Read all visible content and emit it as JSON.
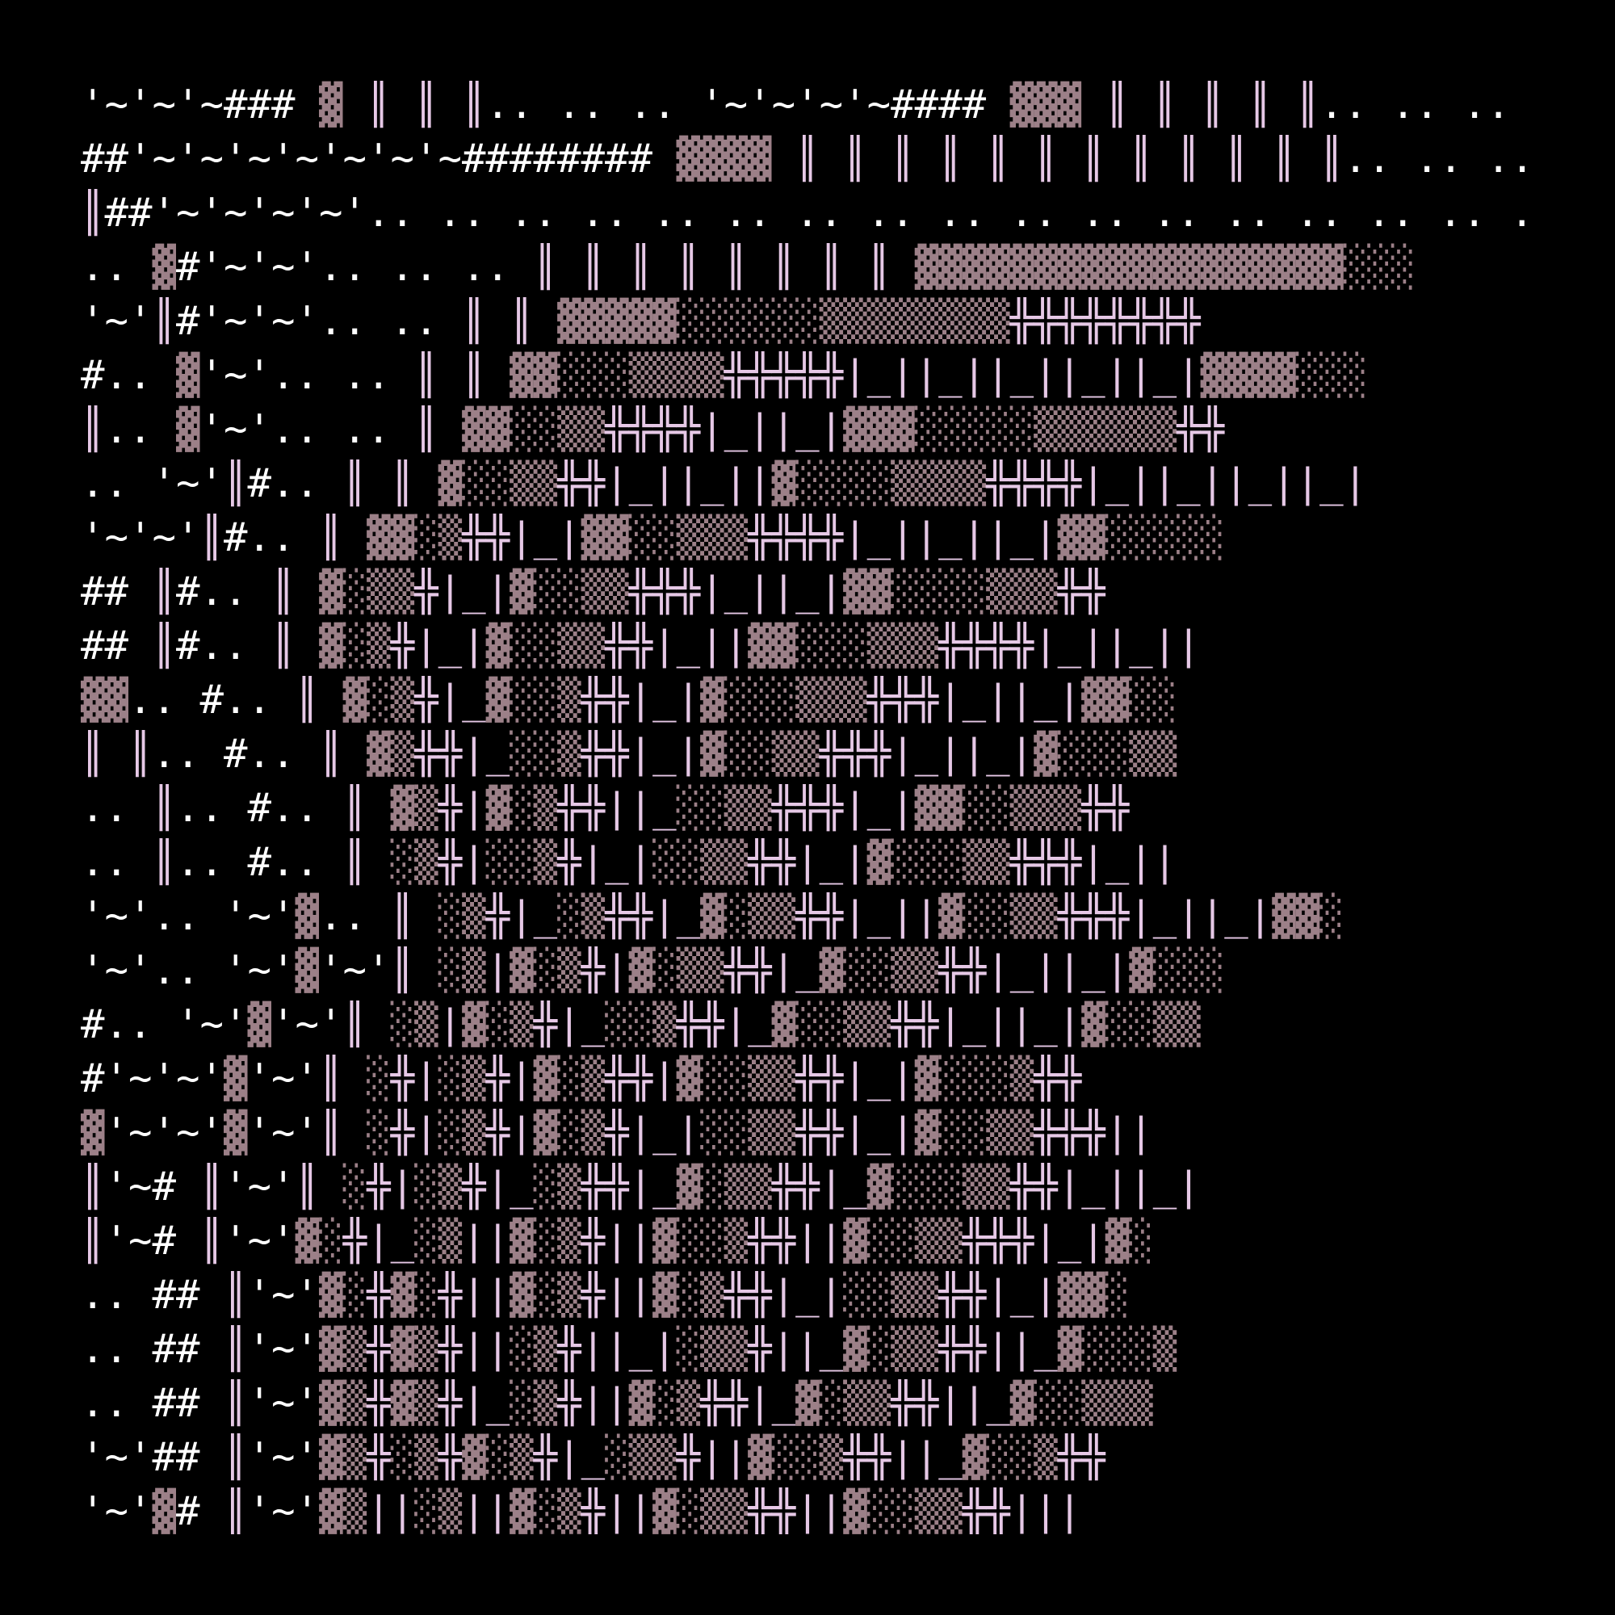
{
  "art": {
    "title": "",
    "rows": [
      "'~'~'~### ▓ ║ ║ ║.. .. .. '~'~'~'~#### ▓▓▓ ║ ║ ║ ║ ║.. .. .. .. .. .. .. '",
      "##'~'~'~'~'~'~'~######## ▓▓▓▓ ║ ║ ║ ║ ║ ║ ║ ║ ║ ║ ║ ║.. .. .. .. ..",
      "║##'~'~'~'~'.. .. .. .. .. .. .. .. .. .. .. .. .. .. .. .. .. .. .. .. .. .. ..",
      ".. ▓#'~'~'.. .. .. ║ ║ ║ ║ ║ ║ ║ ║ ▓▓▓▓▓▓▓▓▓▓▓▓▓▓▓▓▓▓░░░",
      "'~'║#'~'~'.. .. ║ ║ ▓▓▓▓▓░░░░░░▒▒▒▒▒▒▒▒╬╬╬╬╬╬╬╬",
      "#.. ▓'~'.. .. ║ ║ ▓▓░░░▒▒▒▒╬╬╬╬╬|_||_||_||_||_|▓▓▓▓░░░",
      "║.. ▓'~'.. .. ║ ▓▓░░▒▒╬╬╬╬|_||_|▓▓▓░░░░░▒▒▒▒▒▒╬╬",
      ".. '~'║#.. ║ ║ ▓░░▒▒╬╬|_||_||▓░░░░▒▒▒▒╬╬╬╬|_||_||_||_|",
      "'~'~'║#.. ║ ▓▓░▒╬╬|_|▓▓░░▒▒▒╬╬╬╬|_||_||_|▓▓░░░░░",
      "## ║#.. ║ ▓░▒▒╬|_|▓░░▒▒╬╬╬|_||_|▓▓░░░░▒▒▒╬╬",
      "## ║#.. ║ ▓░▒╬|_|▓░░▒▒╬╬|_||▓▓░░░▒▒▒╬╬╬╬|_||_||",
      "▓▓.. #.. ║ ▓░▒╬|_▓░░▒╬╬|_|▓░░░▒▒▒╬╬╬|_||_|▓▓░░",
      "║ ║.. #.. ║ ▓▒╬╬|_░░▒╬╬|_|▓░░▒▒╬╬╬|_||_|▓░░░▒▒",
      ".. ║.. #.. ║ ▓▒╬|▓░▒╬╬||_░░▒▒╬╬╬|_|▓▓░░▒▒▒╬╬",
      ".. ║.. #.. ║ ░▒╬|░░▒╬|_|░░▒▒╬╬|_|▓░░░▒▒╬╬╬|_||",
      "'~'.. '~'▓.. ║ ░▒╬|_░▒╬╬|_▓░▒▒╬╬|_||▓░░▒▒╬╬╬|_||_|▓▓░",
      "'~'.. '~'▓'~'║ ░▒|▓░▒╬|▓░▒▒╬╬|_▓░░▒▒╬╬|_||_|▓░░░",
      "#.. '~'▓'~'║ ░▒|▓░▒╬|_░░▒╬╬|_▓░░▒▒╬╬|_||_|▓░░▒▒",
      "#'~'~'▓'~'║ ░╬|░▒╬|▓░▒╬╬|▓░░▒▒╬╬|_|▓░░░▒╬╬",
      "▓'~'~'▓'~'║ ░╬|░▒╬|▓░▒╬|_|░░▒▒╬╬|_|▓░░▒▒╬╬╬||",
      "║'~# ║'~'║ ░╬|░▒╬|_░▒╬╬|_▓░▒▒╬╬|_▓░░░▒▒╬╬|_||_|",
      "║'~# ║'~'▓░╬|_░▒||▓░▒╬||▓░░▒╬╬||▓░░▒▒╬╬╬|_|▓░",
      ".. ## ║'~'▓░╬▓░╬||▓░▒╬||▓░▒╬╬|_|░░▒▒╬╬|_|▓▓░",
      ".. ## ║'~'▓▒╬▓▒╬||░▒╬||_|░▒▒╬||_▓░▒▒╬╬||_▓░░░▒",
      ".. ## ║'~'▓▒╬▓▒╬|_░▒╬||▓░▒╬╬|_▓░▒▒╬╬||_▓░░▒▒▒",
      "'~'## ║'~'▓▒╬░▒╬▓░▒╬|_░▒▒╬||▓░░▒╬╬||_▓░░▒╬╬",
      "'~'▓# ║'~'▓▒||░▒||▓░▒╬||▓░▒▒╬╬||▓░░▒▒╬╬|||"
    ]
  },
  "colors": {
    "background": "#000000",
    "foreground": "#ffffff",
    "block": "#9c8088",
    "pipe": "#e6c8e6"
  }
}
